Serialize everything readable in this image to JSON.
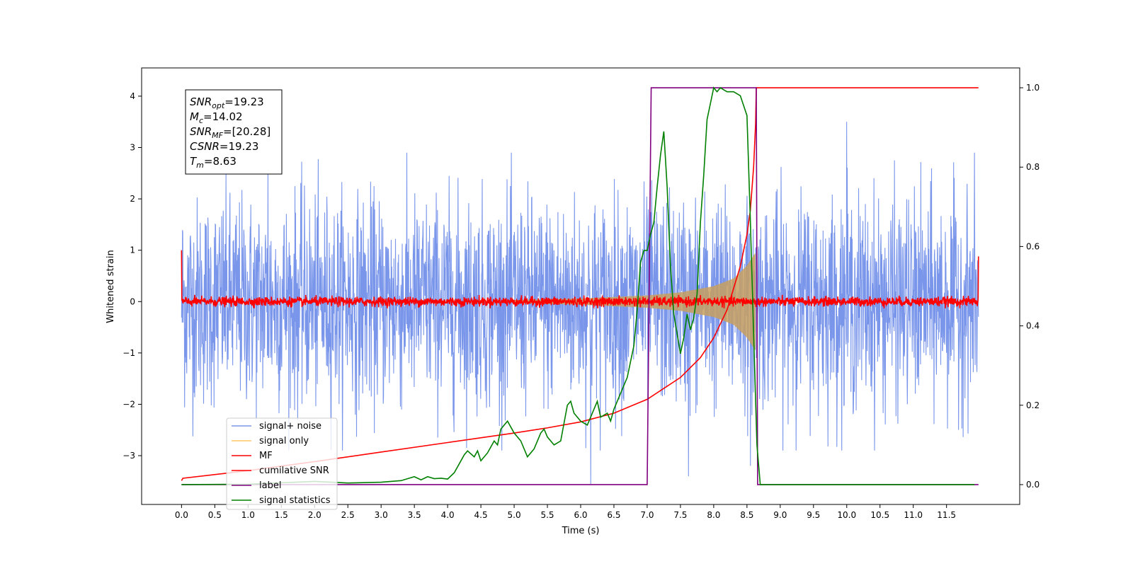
{
  "chart_data": {
    "type": "line",
    "xlabel": "Time (s)",
    "ylabel": "Whitened strain",
    "xlim": [
      -0.6,
      12.6
    ],
    "ylim": [
      -3.95,
      4.55
    ],
    "y2lim": [
      -0.05,
      1.05
    ],
    "x_ticks": [
      "0.0",
      "0.5",
      "1.0",
      "1.5",
      "2.0",
      "2.5",
      "3.0",
      "3.5",
      "4.0",
      "4.5",
      "5.0",
      "5.5",
      "6.0",
      "6.5",
      "7.0",
      "7.5",
      "8.0",
      "8.5",
      "9.0",
      "9.5",
      "10.0",
      "10.5",
      "11.0",
      "11.5"
    ],
    "y_ticks": [
      "−3",
      "−2",
      "−1",
      "0",
      "1",
      "2",
      "3",
      "4"
    ],
    "y2_ticks": [
      "0.0",
      "0.2",
      "0.4",
      "0.6",
      "0.8",
      "1.0"
    ],
    "annotation": [
      {
        "base": "SNR",
        "sub": "opt",
        "value": "=19.23"
      },
      {
        "base": "M",
        "sub": "c",
        "value": "=14.02"
      },
      {
        "base": "SNR",
        "sub": "MF",
        "value": "=[20.28]"
      },
      {
        "base": "CSNR",
        "sub": "",
        "value": "=19.23"
      },
      {
        "base": "T",
        "sub": "m",
        "value": "=8.63"
      }
    ],
    "legend": {
      "placement": "lower left",
      "entries": [
        {
          "label": "signal+ noise",
          "color": "#4169e1"
        },
        {
          "label": "signal only",
          "color": "#ffa500"
        },
        {
          "label": "MF",
          "color": "#ff0000"
        },
        {
          "label": "cumilative SNR",
          "color": "#ff0000"
        },
        {
          "label": "label",
          "color": "#800080"
        },
        {
          "label": "signal statistics",
          "color": "#008000"
        }
      ]
    },
    "series": [
      {
        "name": "signal+ noise",
        "axis": "left",
        "color": "#4169e1",
        "kind": "noise",
        "x_range": [
          0.0,
          11.98
        ],
        "amplitude_sigma": 1.0,
        "peaks": [
          [
            0.02,
            1.35
          ],
          [
            6.15,
            -3.55
          ],
          [
            8.55,
            -3.2
          ],
          [
            10.0,
            3.5
          ],
          [
            1.3,
            2.6
          ],
          [
            7.62,
            -3.4
          ]
        ]
      },
      {
        "name": "signal only",
        "axis": "left",
        "color": "#ffa500",
        "kind": "chirp",
        "envelope_x": [
          5.0,
          6.0,
          7.0,
          7.5,
          8.0,
          8.3,
          8.5,
          8.6,
          8.63
        ],
        "envelope_y": [
          0.03,
          0.06,
          0.12,
          0.18,
          0.3,
          0.45,
          0.7,
          0.9,
          0.95
        ]
      },
      {
        "name": "MF",
        "axis": "left",
        "color": "#ff0000",
        "kind": "noise",
        "x_range": [
          0.0,
          11.98
        ],
        "amplitude_sigma": 0.045,
        "peaks": [
          [
            0.0,
            1.0
          ],
          [
            11.98,
            0.88
          ]
        ]
      },
      {
        "name": "cumilative SNR",
        "axis": "right",
        "color": "#ff0000",
        "x": [
          0.0,
          0.02,
          1.0,
          2.0,
          3.0,
          4.0,
          5.0,
          5.5,
          6.0,
          6.5,
          7.0,
          7.5,
          7.8,
          8.0,
          8.2,
          8.4,
          8.5,
          8.55,
          8.6,
          8.63,
          8.64,
          11.98
        ],
        "y": [
          0.01,
          0.016,
          0.035,
          0.058,
          0.082,
          0.106,
          0.13,
          0.143,
          0.158,
          0.18,
          0.215,
          0.27,
          0.32,
          0.37,
          0.44,
          0.55,
          0.63,
          0.69,
          0.8,
          0.91,
          1.0,
          1.0
        ]
      },
      {
        "name": "label",
        "axis": "right",
        "color": "#800080",
        "x": [
          0.0,
          7.0,
          7.06,
          8.64,
          8.66,
          11.98
        ],
        "y": [
          0.0,
          0.0,
          1.0,
          1.0,
          0.0,
          0.0
        ]
      },
      {
        "name": "signal statistics",
        "axis": "right",
        "color": "#008000",
        "x": [
          0.0,
          1.0,
          2.0,
          2.5,
          3.0,
          3.3,
          3.5,
          3.6,
          3.7,
          3.8,
          3.9,
          4.0,
          4.1,
          4.2,
          4.25,
          4.3,
          4.4,
          4.45,
          4.5,
          4.6,
          4.7,
          4.75,
          4.8,
          4.9,
          5.0,
          5.1,
          5.2,
          5.3,
          5.4,
          5.45,
          5.5,
          5.6,
          5.7,
          5.8,
          5.85,
          5.9,
          6.0,
          6.1,
          6.2,
          6.25,
          6.3,
          6.4,
          6.45,
          6.5,
          6.6,
          6.7,
          6.8,
          6.85,
          6.9,
          6.95,
          7.0,
          7.05,
          7.1,
          7.15,
          7.2,
          7.25,
          7.3,
          7.35,
          7.4,
          7.45,
          7.5,
          7.55,
          7.6,
          7.65,
          7.7,
          7.75,
          7.8,
          7.85,
          7.9,
          7.95,
          8.0,
          8.05,
          8.1,
          8.2,
          8.3,
          8.4,
          8.5,
          8.55,
          8.6,
          8.65,
          8.7,
          8.75,
          8.8,
          9.0,
          10.0,
          11.0,
          11.92
        ],
        "y": [
          0.0,
          0.001,
          0.008,
          0.004,
          0.006,
          0.01,
          0.02,
          0.012,
          0.02,
          0.015,
          0.016,
          0.014,
          0.03,
          0.06,
          0.075,
          0.085,
          0.07,
          0.085,
          0.06,
          0.08,
          0.11,
          0.1,
          0.14,
          0.16,
          0.13,
          0.11,
          0.07,
          0.09,
          0.13,
          0.14,
          0.12,
          0.1,
          0.11,
          0.2,
          0.21,
          0.18,
          0.16,
          0.15,
          0.19,
          0.21,
          0.17,
          0.18,
          0.16,
          0.19,
          0.23,
          0.27,
          0.35,
          0.44,
          0.56,
          0.59,
          0.59,
          0.63,
          0.66,
          0.75,
          0.83,
          0.89,
          0.75,
          0.55,
          0.43,
          0.38,
          0.33,
          0.37,
          0.43,
          0.39,
          0.42,
          0.48,
          0.66,
          0.78,
          0.92,
          0.96,
          1.0,
          0.99,
          1.0,
          0.99,
          0.99,
          0.98,
          0.93,
          0.67,
          0.38,
          0.1,
          0.0,
          0.0,
          0.0,
          0.0,
          0.0,
          0.0,
          0.0
        ]
      }
    ]
  }
}
